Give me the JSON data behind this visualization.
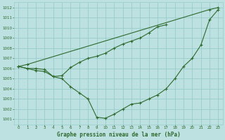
{
  "title": "Graphe pression niveau de la mer (hPa)",
  "bg_color": "#bde0e0",
  "grid_color": "#99cccc",
  "line_color": "#2d6a2d",
  "ylim": [
    1000.5,
    1012.5
  ],
  "xlim": [
    -0.5,
    23.5
  ],
  "yticks": [
    1001,
    1002,
    1003,
    1004,
    1005,
    1006,
    1007,
    1008,
    1009,
    1010,
    1011,
    1012
  ],
  "xticks": [
    0,
    1,
    2,
    3,
    4,
    5,
    6,
    7,
    8,
    9,
    10,
    11,
    12,
    13,
    14,
    15,
    16,
    17,
    18,
    19,
    20,
    21,
    22,
    23
  ],
  "series": [
    {
      "x": [
        0,
        1,
        22,
        23
      ],
      "y": [
        1006.2,
        1006.4,
        1011.8,
        1012.0
      ]
    },
    {
      "x": [
        0,
        1,
        2,
        3,
        4,
        5,
        6,
        7,
        8,
        9,
        10,
        11,
        12,
        13,
        14,
        15,
        16,
        17
      ],
      "y": [
        1006.2,
        1006.0,
        1006.0,
        1005.9,
        1005.2,
        1005.3,
        1006.1,
        1006.6,
        1007.0,
        1007.2,
        1007.5,
        1008.0,
        1008.4,
        1008.7,
        1009.0,
        1009.5,
        1010.1,
        1010.3
      ]
    },
    {
      "x": [
        0,
        1,
        2,
        3,
        4,
        5,
        6,
        7,
        8,
        9,
        10,
        11,
        12,
        13,
        14,
        15,
        16,
        17,
        18,
        19,
        20,
        21,
        22,
        23
      ],
      "y": [
        1006.2,
        1006.0,
        1005.8,
        1005.7,
        1005.2,
        1005.0,
        1004.2,
        1003.6,
        1003.0,
        1001.2,
        1001.1,
        1001.5,
        1002.0,
        1002.5,
        1002.6,
        1003.0,
        1003.4,
        1004.0,
        1005.0,
        1006.2,
        1007.0,
        1008.3,
        1010.8,
        1011.8
      ]
    }
  ]
}
